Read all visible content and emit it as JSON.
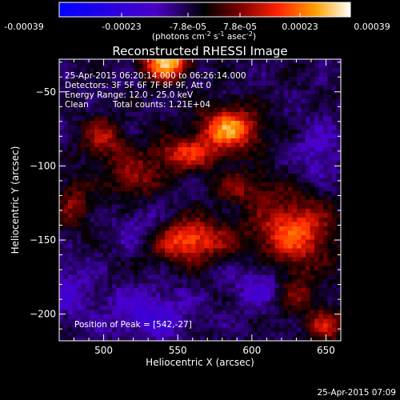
{
  "chart_data": {
    "type": "heatmap",
    "title": "Reconstructed RHESSI Image",
    "xlabel": "Heliocentric X (arcsec)",
    "ylabel": "Heliocentric Y (arcsec)",
    "xlim": [
      470,
      660
    ],
    "ylim": [
      -218,
      -28
    ],
    "x_ticks": [
      500,
      550,
      600,
      650
    ],
    "y_ticks": [
      -50,
      -100,
      -150,
      -200
    ],
    "colorbar": {
      "range": [
        -0.00039,
        0.00039
      ],
      "tick_labels": [
        "-0.00039",
        "-0.00023",
        "-7.8e-05",
        "7.8e-05",
        "0.00023",
        "0.00039"
      ],
      "unit_prefix": "(photons cm",
      "unit_exp1": "-2",
      "unit_mid": " s",
      "unit_exp2": "-1",
      "unit_mid2": " asec",
      "unit_exp3": "-2",
      "unit_suffix": ")",
      "colors": [
        "#0000ff",
        "#4b00c8",
        "#000000",
        "#7a0000",
        "#ff2000",
        "#ffa000",
        "#ffffff"
      ]
    },
    "annotations": {
      "time_range": "25-Apr-2015 06:20:14.000 to 06:26:14.000",
      "detectors": "Detectors: 3F 5F 6F 7F 8F 9F, Att 0",
      "energy": "Energy Range: 12.0 - 25.0 keV",
      "clean": "Clean",
      "counts": "Total counts: 1.21E+04",
      "peak": "Position of Peak = [542,-27]"
    },
    "timestamp": "25-Apr-2015 07:09",
    "sources": [
      {
        "x": 542,
        "y": -30,
        "amp": 1.0,
        "sx": 10,
        "sy": 8
      },
      {
        "x": 585,
        "y": -75,
        "amp": 0.85,
        "sx": 14,
        "sy": 10
      },
      {
        "x": 555,
        "y": -92,
        "amp": 0.55,
        "sx": 16,
        "sy": 8
      },
      {
        "x": 500,
        "y": -82,
        "amp": 0.45,
        "sx": 10,
        "sy": 10
      },
      {
        "x": 520,
        "y": -108,
        "amp": 0.4,
        "sx": 12,
        "sy": 10
      },
      {
        "x": 555,
        "y": -150,
        "amp": 0.75,
        "sx": 20,
        "sy": 10
      },
      {
        "x": 628,
        "y": -145,
        "amp": 0.7,
        "sx": 18,
        "sy": 16
      },
      {
        "x": 628,
        "y": -185,
        "amp": 0.4,
        "sx": 10,
        "sy": 12
      },
      {
        "x": 650,
        "y": -208,
        "amp": 0.5,
        "sx": 8,
        "sy": 8
      },
      {
        "x": 480,
        "y": -125,
        "amp": 0.35,
        "sx": 8,
        "sy": 12
      },
      {
        "x": 595,
        "y": -115,
        "amp": 0.35,
        "sx": 14,
        "sy": 8
      },
      {
        "x": 528,
        "y": -145,
        "amp": -0.35,
        "sx": 14,
        "sy": 10
      },
      {
        "x": 610,
        "y": -180,
        "amp": -0.3,
        "sx": 16,
        "sy": 12
      },
      {
        "x": 530,
        "y": -200,
        "amp": -0.35,
        "sx": 20,
        "sy": 12
      },
      {
        "x": 645,
        "y": -90,
        "amp": -0.25,
        "sx": 10,
        "sy": 14
      },
      {
        "x": 478,
        "y": -185,
        "amp": -0.25,
        "sx": 10,
        "sy": 14
      }
    ]
  }
}
